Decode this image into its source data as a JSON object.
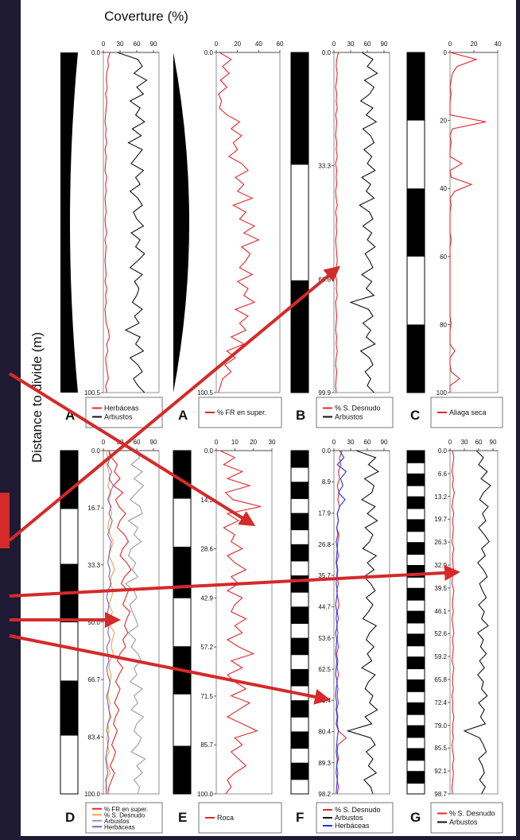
{
  "figure": {
    "title": "Coverture (%)",
    "ylabel": "Distance to divide (m)",
    "colors": {
      "frame_bg": "#1e1a33",
      "panel_bg": "#ffffff",
      "red": "#e8262a",
      "black": "#111111",
      "blue": "#2233ee",
      "orange": "#f2a33a",
      "grey": "#9a9a9a",
      "purple": "#7a5cc8",
      "arrow": "#d42a2a"
    }
  },
  "chart_data": [
    {
      "id": "A1",
      "type": "line",
      "panel_letter": "A",
      "xlim": [
        0,
        100
      ],
      "xticks": [
        "0",
        "30",
        "60",
        "90"
      ],
      "y_ticks": [
        "0.0",
        "100.5"
      ],
      "ylim": [
        0,
        100.5
      ],
      "series": [
        {
          "name": "Herbáceas",
          "color": "red",
          "values": [
            12,
            8,
            9,
            6,
            5,
            7,
            4,
            6,
            5,
            4,
            3,
            5,
            4,
            6,
            3,
            5,
            4,
            3,
            6,
            4,
            5,
            3,
            4,
            5,
            3,
            4,
            6,
            3,
            5,
            4,
            3,
            4,
            5,
            3,
            6,
            4,
            5,
            3,
            4,
            5,
            9,
            11,
            6,
            8,
            4,
            5,
            7,
            9,
            4,
            6
          ]
        },
        {
          "name": "Arbustos",
          "color": "black",
          "values": [
            25,
            62,
            70,
            55,
            78,
            60,
            72,
            48,
            66,
            58,
            74,
            52,
            68,
            45,
            70,
            60,
            50,
            72,
            58,
            66,
            48,
            62,
            70,
            54,
            60,
            72,
            50,
            66,
            58,
            74,
            62,
            48,
            70,
            56,
            64,
            60,
            52,
            70,
            56,
            64,
            40,
            66,
            58,
            72,
            48,
            62,
            70,
            54,
            62,
            74
          ]
        }
      ]
    },
    {
      "id": "A2",
      "type": "line",
      "panel_letter": "A",
      "xlim": [
        0,
        60
      ],
      "xticks": [
        "0",
        "20",
        "40",
        "60"
      ],
      "y_ticks": [
        "0.0",
        "100.5"
      ],
      "ylim": [
        0,
        100.5
      ],
      "series": [
        {
          "name": "% FR en super.",
          "color": "red",
          "values": [
            3,
            14,
            6,
            12,
            4,
            10,
            2,
            5,
            3,
            10,
            22,
            14,
            24,
            16,
            20,
            12,
            24,
            30,
            18,
            26,
            20,
            34,
            16,
            28,
            22,
            36,
            26,
            40,
            24,
            32,
            28,
            22,
            34,
            20,
            30,
            26,
            36,
            18,
            30,
            22,
            28,
            14,
            26,
            10,
            18,
            8,
            14,
            6,
            4,
            2
          ]
        }
      ]
    },
    {
      "id": "B",
      "type": "line",
      "panel_letter": "B",
      "xlim": [
        0,
        100
      ],
      "xticks": [
        "0",
        "30",
        "60",
        "90"
      ],
      "y_ticks": [
        "0.0",
        "33.3",
        "66.6",
        "99.9"
      ],
      "ylim": [
        0,
        99.9
      ],
      "series": [
        {
          "name": "% S. Desnudo",
          "color": "red",
          "values": [
            8,
            5,
            4,
            6,
            5,
            3,
            5,
            4,
            6,
            3,
            5,
            4,
            3,
            5,
            4,
            6,
            3,
            5,
            4,
            5,
            3,
            4,
            6,
            3,
            5,
            4,
            5,
            3,
            4,
            5,
            6,
            4,
            3,
            5,
            4,
            6,
            3,
            4,
            5,
            4,
            3,
            5,
            4,
            6,
            4,
            3,
            5,
            4,
            3,
            4
          ]
        },
        {
          "name": "Arbustos",
          "color": "black",
          "values": [
            50,
            70,
            60,
            78,
            55,
            72,
            64,
            48,
            70,
            58,
            76,
            52,
            66,
            72,
            54,
            68,
            60,
            74,
            50,
            66,
            58,
            72,
            46,
            64,
            70,
            52,
            68,
            60,
            74,
            56,
            64,
            70,
            50,
            68,
            58,
            72,
            30,
            62,
            70,
            52,
            66,
            58,
            74,
            48,
            64,
            70,
            56,
            66,
            60,
            72
          ]
        }
      ]
    },
    {
      "id": "C",
      "type": "line",
      "panel_letter": "C",
      "xlim": [
        0,
        40
      ],
      "xticks": [
        "0",
        "20",
        "40"
      ],
      "y_ticks": [
        "0",
        "20",
        "40",
        "60",
        "80",
        "100"
      ],
      "ylim": [
        0,
        100
      ],
      "series": [
        {
          "name": "Aliaga seca",
          "color": "red",
          "values": [
            0,
            22,
            6,
            2,
            1,
            0,
            1,
            0,
            0,
            0,
            30,
            2,
            0,
            1,
            0,
            0,
            10,
            0,
            1,
            18,
            4,
            0,
            1,
            0,
            0,
            0,
            0,
            1,
            0,
            0,
            0,
            0,
            0,
            0,
            0,
            0,
            0,
            0,
            0,
            1,
            0,
            0,
            0,
            4,
            0,
            0,
            1,
            8,
            0,
            0
          ]
        }
      ]
    },
    {
      "id": "D",
      "type": "line",
      "panel_letter": "D",
      "xlim": [
        0,
        100
      ],
      "xticks": [
        "0",
        "30",
        "60",
        "90"
      ],
      "y_ticks": [
        "0.0",
        "16.7",
        "33.3",
        "50.0",
        "66.7",
        "83.4",
        "100.0"
      ],
      "ylim": [
        0,
        100
      ],
      "series": [
        {
          "name": "% FR en super.",
          "color": "red",
          "values": [
            10,
            15,
            25,
            20,
            30,
            18,
            35,
            22,
            28,
            40,
            30,
            25,
            38,
            45,
            35,
            30,
            42,
            50,
            38,
            32,
            45,
            40,
            35,
            48,
            42,
            38,
            44,
            35,
            40,
            30,
            25,
            35,
            28,
            22,
            30,
            25,
            20,
            28,
            22,
            18,
            25,
            20,
            15,
            22,
            18,
            12,
            20,
            15,
            10,
            8
          ]
        },
        {
          "name": "% S. Desnudo",
          "color": "orange",
          "values": [
            5,
            8,
            6,
            10,
            12,
            8,
            14,
            10,
            12,
            15,
            10,
            8,
            12,
            18,
            14,
            10,
            16,
            20,
            14,
            12,
            18,
            14,
            10,
            16,
            14,
            12,
            20,
            16,
            14,
            18,
            12,
            10,
            14,
            12,
            10,
            8,
            12,
            10,
            14,
            8,
            10,
            6,
            8,
            10,
            6,
            8,
            12,
            6,
            4,
            5
          ]
        },
        {
          "name": "Arbustos",
          "color": "grey",
          "values": [
            60,
            65,
            50,
            70,
            55,
            72,
            60,
            48,
            66,
            70,
            45,
            62,
            55,
            68,
            50,
            45,
            58,
            52,
            62,
            40,
            55,
            60,
            48,
            52,
            58,
            62,
            45,
            58,
            50,
            62,
            68,
            55,
            60,
            48,
            70,
            55,
            62,
            50,
            72,
            60,
            55,
            68,
            62,
            50,
            75,
            60,
            70,
            55,
            65,
            62
          ]
        },
        {
          "name": "Herbáceas",
          "color": "purple",
          "values": [
            10,
            12,
            8,
            15,
            10,
            18,
            12,
            8,
            14,
            10,
            16,
            12,
            8,
            14,
            12,
            10,
            8,
            12,
            10,
            14,
            8,
            6,
            10,
            8,
            6,
            10,
            8,
            12,
            6,
            8,
            10,
            6,
            8,
            12,
            10,
            6,
            8,
            10,
            12,
            8,
            6,
            10,
            8,
            6,
            4,
            6,
            8,
            4,
            6,
            5
          ]
        }
      ]
    },
    {
      "id": "E",
      "type": "line",
      "panel_letter": "E",
      "xlim": [
        0,
        30
      ],
      "xticks": [
        "0",
        "10",
        "20",
        "30"
      ],
      "y_ticks": [
        "0.0",
        "14.3",
        "28.6",
        "42.9",
        "57.2",
        "71.5",
        "85.7",
        "100.0"
      ],
      "ylim": [
        0,
        100
      ],
      "series": [
        {
          "name": "Roca",
          "color": "red",
          "values": [
            2,
            10,
            4,
            14,
            6,
            18,
            5,
            9,
            24,
            6,
            12,
            4,
            10,
            8,
            14,
            6,
            10,
            16,
            8,
            12,
            6,
            14,
            10,
            8,
            16,
            10,
            14,
            6,
            12,
            20,
            8,
            14,
            6,
            10,
            16,
            8,
            18,
            12,
            6,
            14,
            22,
            10,
            14,
            8,
            12,
            16,
            10,
            6,
            8,
            5
          ]
        }
      ]
    },
    {
      "id": "F",
      "type": "line",
      "panel_letter": "F",
      "xlim": [
        0,
        100
      ],
      "xticks": [
        "0",
        "30",
        "60",
        "90"
      ],
      "y_ticks": [
        "0.0",
        "8.9",
        "17.9",
        "26.8",
        "35.7",
        "44.7",
        "53.6",
        "62.5",
        "71.4",
        "80.4",
        "89.3",
        "98.2"
      ],
      "ylim": [
        0,
        98.2
      ],
      "series": [
        {
          "name": "% S. Desnudo",
          "color": "red",
          "values": [
            15,
            10,
            12,
            8,
            10,
            6,
            9,
            7,
            10,
            6,
            8,
            5,
            9,
            7,
            6,
            8,
            5,
            7,
            6,
            8,
            5,
            7,
            9,
            6,
            8,
            5,
            7,
            6,
            8,
            5,
            7,
            6,
            8,
            5,
            7,
            6,
            8,
            5,
            7,
            6,
            8,
            22,
            7,
            6,
            8,
            5,
            7,
            6,
            8,
            6
          ]
        },
        {
          "name": "Arbustos",
          "color": "black",
          "values": [
            40,
            75,
            62,
            80,
            55,
            72,
            68,
            50,
            74,
            60,
            78,
            56,
            70,
            64,
            52,
            76,
            60,
            72,
            54,
            66,
            74,
            58,
            70,
            62,
            52,
            76,
            64,
            58,
            72,
            60,
            68,
            50,
            74,
            62,
            56,
            70,
            64,
            78,
            56,
            68,
            25,
            66,
            74,
            58,
            70,
            62,
            76,
            54,
            66,
            70
          ]
        },
        {
          "name": "Herbáceas",
          "color": "blue",
          "values": [
            10,
            18,
            6,
            22,
            12,
            16,
            8,
            20,
            10,
            6,
            8,
            5,
            7,
            4,
            6,
            5,
            4,
            6,
            5,
            4,
            6,
            5,
            3,
            5,
            4,
            6,
            3,
            5,
            4,
            3,
            5,
            4,
            3,
            6,
            4,
            3,
            5,
            4,
            6,
            4,
            8,
            6,
            5,
            4,
            6,
            5,
            4,
            6,
            5,
            4
          ]
        }
      ]
    },
    {
      "id": "G",
      "type": "line",
      "panel_letter": "G",
      "xlim": [
        0,
        100
      ],
      "xticks": [
        "0",
        "30",
        "60",
        "90"
      ],
      "y_ticks": [
        "0.0",
        "6.6",
        "13.2",
        "19.7",
        "26.3",
        "32.9",
        "39.5",
        "46.1",
        "52.6",
        "59.2",
        "65.8",
        "72.4",
        "79.0",
        "85.5",
        "92.1",
        "98.7"
      ],
      "ylim": [
        0,
        98.7
      ],
      "series": [
        {
          "name": "% S. Desnudo",
          "color": "red",
          "values": [
            5,
            8,
            6,
            4,
            7,
            5,
            9,
            6,
            4,
            8,
            5,
            7,
            6,
            4,
            8,
            5,
            6,
            7,
            5,
            4,
            8,
            6,
            5,
            7,
            4,
            6,
            8,
            5,
            7,
            6,
            4,
            8,
            6,
            5,
            7,
            4,
            6,
            5,
            8,
            6,
            5,
            7,
            4,
            6,
            8,
            5,
            7,
            6,
            4,
            5
          ]
        },
        {
          "name": "Arbustos",
          "color": "black",
          "values": [
            55,
            70,
            60,
            78,
            65,
            85,
            70,
            62,
            80,
            68,
            75,
            60,
            72,
            82,
            66,
            74,
            58,
            70,
            78,
            62,
            68,
            76,
            60,
            72,
            66,
            80,
            58,
            70,
            64,
            76,
            62,
            72,
            58,
            70,
            66,
            78,
            60,
            72,
            64,
            74,
            30,
            62,
            70,
            76,
            60,
            68,
            72,
            62,
            74,
            66
          ]
        }
      ]
    }
  ],
  "legends": {
    "A1": {
      "letter": "A",
      "items": [
        "Herbáceas",
        "Arbustos"
      ]
    },
    "A2": {
      "letter": "A",
      "items": [
        "% FR en super."
      ]
    },
    "B": {
      "letter": "B",
      "items": [
        "% S. Desnudo",
        "Arbustos"
      ]
    },
    "C": {
      "letter": "C",
      "items": [
        "Aliaga seca"
      ]
    },
    "D": {
      "letter": "D",
      "items": [
        "% FR en super.",
        "% S. Desnudo",
        "Arbustos",
        "Herbáceas"
      ]
    },
    "E": {
      "letter": "E",
      "items": [
        "Roca"
      ]
    },
    "F": {
      "letter": "F",
      "items": [
        "% S. Desnudo",
        "Arbustos",
        "Herbáceas"
      ]
    },
    "G": {
      "letter": "G",
      "items": [
        "% S. Desnudo",
        "Arbustos"
      ]
    }
  }
}
